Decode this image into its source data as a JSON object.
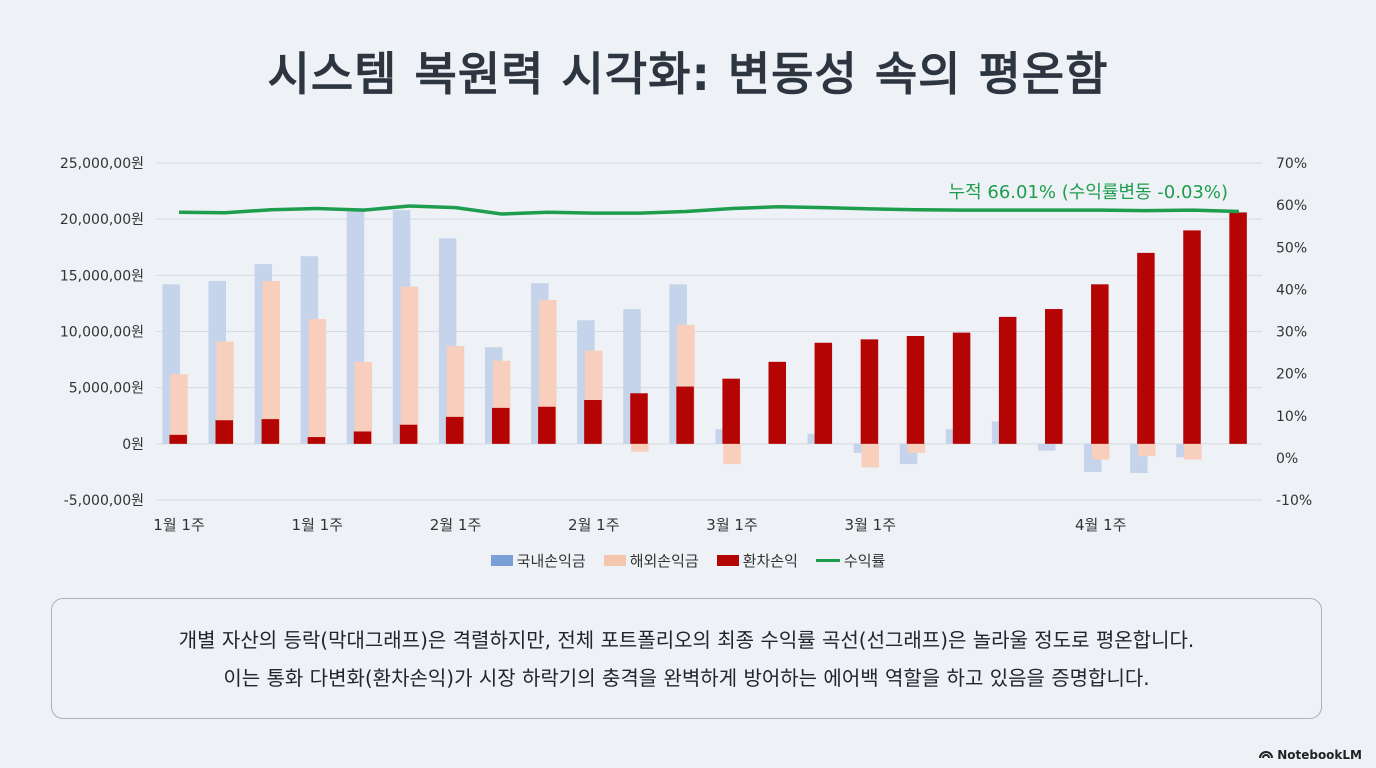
{
  "title": "시스템 복원력 시각화: 변동성 속의 평온함",
  "chart_data": {
    "type": "bar",
    "categories": [
      "1월 1주",
      "",
      "",
      "1월 1주",
      "",
      "",
      "2월 1주",
      "",
      "",
      "2월 1주",
      "",
      "",
      "3월 1주",
      "",
      "",
      "3월 1주",
      "",
      "",
      "",
      "",
      "4월 1주",
      "",
      "",
      ""
    ],
    "y_left_ticks": [
      "25,000,00원",
      "20,000,00원",
      "15,000,00원",
      "10,000,00원",
      "5,000,00원",
      "0원",
      "-5,000,00원"
    ],
    "y_right_ticks": [
      "70%",
      "60%",
      "50%",
      "40%",
      "30%",
      "20%",
      "10%",
      "0%",
      "-10%"
    ],
    "ylim_left": [
      -5000000,
      25000000
    ],
    "ylim_right": [
      -10,
      70
    ],
    "series": [
      {
        "name": "국내손익금",
        "kind": "bar",
        "color": "#c5d4ea",
        "values": [
          14200000,
          14500000,
          16000000,
          16700000,
          21000000,
          20800000,
          18300000,
          8600000,
          14300000,
          11000000,
          12000000,
          14200000,
          1300000,
          0,
          900000,
          -800000,
          -1800000,
          1300000,
          2000000,
          -600000,
          -2500000,
          -2600000,
          -1200000,
          0
        ]
      },
      {
        "name": "해외손익금",
        "kind": "bar",
        "color": "#f7cfbc",
        "values": [
          6200000,
          9100000,
          14500000,
          11100000,
          7300000,
          14000000,
          8700000,
          7400000,
          12800000,
          8300000,
          -700000,
          10600000,
          -1800000,
          0,
          0,
          -2100000,
          -800000,
          0,
          0,
          0,
          -1400000,
          -1100000,
          -1400000,
          0
        ]
      },
      {
        "name": "환차손익",
        "kind": "bar",
        "color": "#b50404",
        "values": [
          800000,
          2100000,
          2200000,
          600000,
          1100000,
          1700000,
          2400000,
          3200000,
          3300000,
          3900000,
          4500000,
          5100000,
          5800000,
          7300000,
          9000000,
          9300000,
          9600000,
          9900000,
          11300000,
          12000000,
          14200000,
          17000000,
          19000000,
          20600000
        ]
      },
      {
        "name": "수익률",
        "kind": "line",
        "color": "#1f9d4e",
        "values": [
          58.3,
          58.2,
          58.9,
          59.2,
          58.8,
          59.8,
          59.4,
          57.9,
          58.3,
          58.1,
          58.1,
          58.5,
          59.2,
          59.6,
          59.4,
          59.1,
          58.9,
          58.8,
          58.8,
          58.8,
          58.8,
          58.7,
          58.8,
          58.5
        ]
      }
    ],
    "annotation": "누적 66.01% (수익률변동 -0.03%)",
    "legend_position": "bottom",
    "grid": true
  },
  "legend": [
    {
      "label": "국내손익금",
      "color": "#7a9fd6",
      "kind": "bar"
    },
    {
      "label": "해외손익금",
      "color": "#f4c6ae",
      "kind": "bar"
    },
    {
      "label": "환차손익",
      "color": "#b50404",
      "kind": "bar"
    },
    {
      "label": "수익률",
      "color": "#1f9d4e",
      "kind": "line"
    }
  ],
  "note": {
    "line1": "개별 자산의 등락(막대그래프)은 격렬하지만, 전체 포트폴리오의 최종 수익률 곡선(선그래프)은 놀라울 정도로 평온합니다.",
    "line2": "이는 통화 다변화(환차손익)가 시장 하락기의 충격을 완벽하게 방어하는 에어백 역할을 하고 있음을 증명합니다."
  },
  "brand": "NotebookLM",
  "brand_icon": "notebooklm-logo-icon"
}
